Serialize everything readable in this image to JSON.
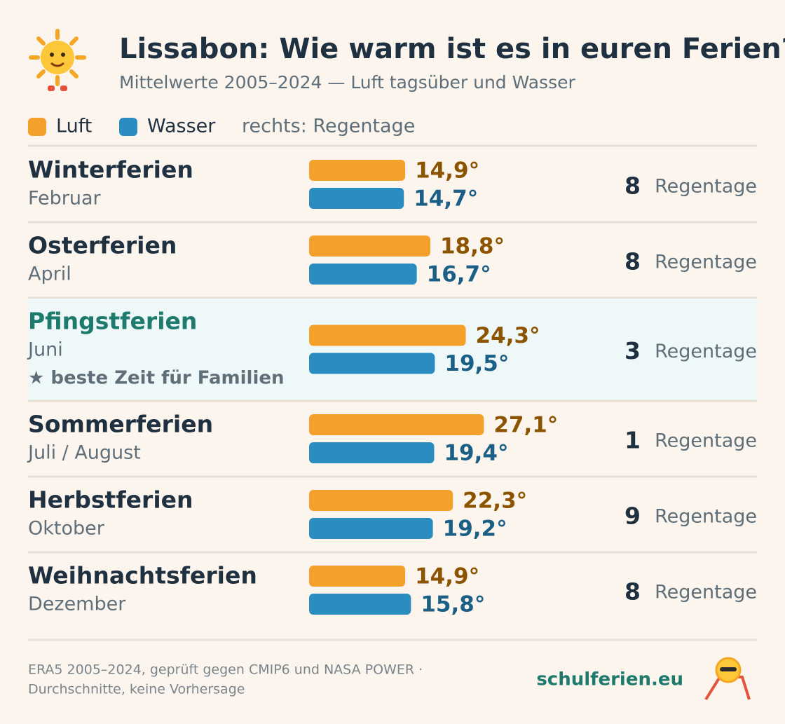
{
  "chart_data": {
    "type": "bar",
    "title": "Lissabon: Wie warm ist es in euren Ferien?",
    "subtitle": "Mittelwerte 2005–2024 — Luft tagsüber und Wasser",
    "legend_note": "rechts: Regentage",
    "categories": [
      "Winterferien",
      "Osterferien",
      "Pfingstferien",
      "Sommerferien",
      "Herbstferien",
      "Weihnachtsferien"
    ],
    "category_subtitles": [
      "Februar",
      "April",
      "Juni",
      "Juli / August",
      "Oktober",
      "Dezember"
    ],
    "highlight_notes": [
      null,
      null,
      "★ beste Zeit für Familien",
      null,
      null,
      null
    ],
    "series": [
      {
        "name": "Luft",
        "color": "#f3a12b",
        "label_color": "#8c5400",
        "values": [
          14.9,
          18.8,
          24.3,
          27.1,
          22.3,
          14.9
        ],
        "value_labels": [
          "14,9°",
          "18,8°",
          "24,3°",
          "27,1°",
          "22,3°",
          "14,9°"
        ]
      },
      {
        "name": "Wasser",
        "color": "#2b8cc0",
        "label_color": "#1b5f86",
        "values": [
          14.7,
          16.7,
          19.5,
          19.4,
          19.2,
          15.8
        ],
        "value_labels": [
          "14,7°",
          "16,7°",
          "19,5°",
          "19,4°",
          "19,2°",
          "15,8°"
        ]
      }
    ],
    "rain_days": {
      "unit": "Regentage",
      "values": [
        8,
        8,
        3,
        1,
        9,
        8
      ]
    },
    "footer": {
      "source_lines": [
        "ERA5 2005–2024, geprüft gegen CMIP6 und NASA POWER ·",
        "Durchschnitte, keine Vorhersage"
      ],
      "brand": "schulferien.eu"
    }
  }
}
